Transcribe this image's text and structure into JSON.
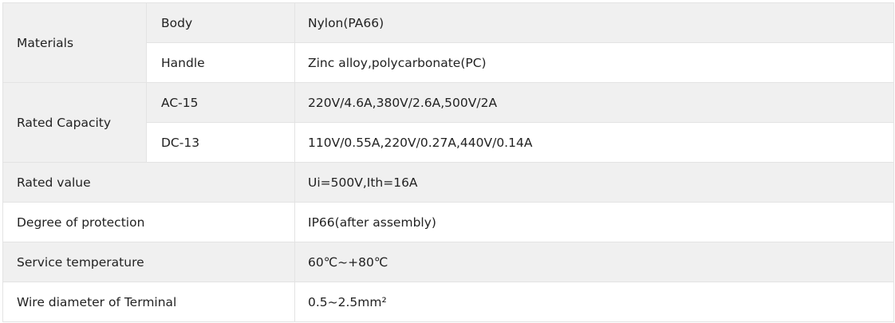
{
  "specs": {
    "materials": {
      "label": "Materials",
      "body": {
        "label": "Body",
        "value": "Nylon(PA66)"
      },
      "handle": {
        "label": "Handle",
        "value": "Zinc alloy,polycarbonate(PC)"
      }
    },
    "rated_capacity": {
      "label": "Rated Capacity",
      "ac15": {
        "label": "AC-15",
        "value": "220V/4.6A,380V/2.6A,500V/2A"
      },
      "dc13": {
        "label": "DC-13",
        "value": "110V/0.55A,220V/0.27A,440V/0.14A"
      }
    },
    "rated_value": {
      "label": "Rated value",
      "value": "Ui=500V,Ith=16A"
    },
    "degree_of_protection": {
      "label": "Degree of protection",
      "value": "IP66(after assembly)"
    },
    "service_temperature": {
      "label": "Service temperature",
      "value": "60℃~+80℃"
    },
    "wire_diameter": {
      "label": "Wire diameter of Terminal",
      "value": "0.5~2.5mm²"
    }
  }
}
